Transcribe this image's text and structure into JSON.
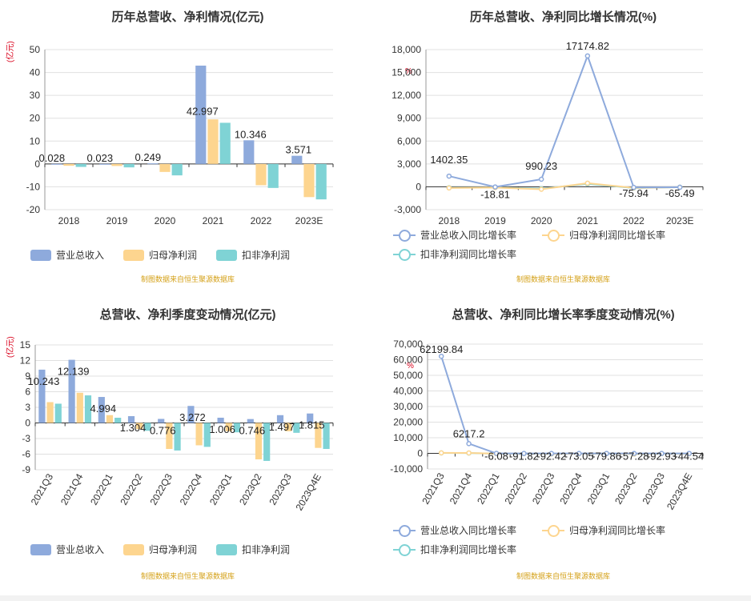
{
  "colors": {
    "revenue": "#8eaadc",
    "net_profit": "#fdd58f",
    "deducted_net_profit": "#7fd3d5",
    "axis_text": "#333333",
    "grid": "#e0e0e0",
    "unit_red": "#d9001b",
    "source": "#d4a017"
  },
  "source_text": "制图数据来自恒生聚源数据库",
  "chart_data": [
    {
      "id": "p1",
      "type": "bar",
      "title": "历年总营收、净利情况(亿元)",
      "unit": "(亿元)",
      "categories": [
        "2018",
        "2019",
        "2020",
        "2021",
        "2022",
        "2023E"
      ],
      "ylim": [
        -20,
        50
      ],
      "yticks": [
        -20,
        -10,
        0,
        10,
        20,
        30,
        40,
        50
      ],
      "series": [
        {
          "name": "营业总收入",
          "values": [
            0.028,
            0.023,
            0.249,
            42.997,
            10.346,
            3.571
          ]
        },
        {
          "name": "归母净利润",
          "values": [
            -0.8,
            -0.9,
            -3.5,
            19.5,
            -9.3,
            -14.5
          ]
        },
        {
          "name": "扣非净利润",
          "values": [
            -1.3,
            -1.5,
            -5.0,
            18.0,
            -10.5,
            -15.5
          ]
        }
      ],
      "data_labels": [
        "0.028",
        "0.023",
        "0.249",
        "42.997",
        "10.346",
        "3.571"
      ],
      "legend_position": "bottom-left",
      "grid": true
    },
    {
      "id": "p2",
      "type": "line",
      "title": "历年总营收、净利同比增长情况(%)",
      "unit": "%",
      "categories": [
        "2018",
        "2019",
        "2020",
        "2021",
        "2022",
        "2023E"
      ],
      "ylim": [
        -3000,
        18000
      ],
      "yticks": [
        -3000,
        0,
        3000,
        6000,
        9000,
        12000,
        15000,
        18000
      ],
      "ytick_labels": [
        "-3,000",
        "0",
        "3,000",
        "6,000",
        "9,000",
        "12,000",
        "15,000",
        "18,000"
      ],
      "series": [
        {
          "name": "营业总收入同比增长率",
          "values": [
            1402.35,
            -18.81,
            990.23,
            17174.82,
            -75.94,
            -65.49
          ]
        },
        {
          "name": "归母净利润同比增长率",
          "values": [
            -150,
            -100,
            -320,
            480,
            -140,
            -60
          ]
        },
        {
          "name": "扣非净利润同比增长率",
          "values": [
            -120,
            -90,
            -250,
            400,
            -160,
            -50
          ]
        }
      ],
      "data_labels": [
        "1402.35",
        "-18.81",
        "990.23",
        "17174.82",
        "-75.94",
        "-65.49"
      ],
      "legend_position": "bottom-left",
      "grid": true
    },
    {
      "id": "p3",
      "type": "bar",
      "title": "总营收、净利季度变动情况(亿元)",
      "unit": "(亿元)",
      "categories": [
        "2021Q3",
        "2021Q4",
        "2022Q1",
        "2022Q2",
        "2022Q3",
        "2022Q4",
        "2023Q1",
        "2023Q2",
        "2023Q3",
        "2023Q4E"
      ],
      "ylim": [
        -9,
        15
      ],
      "yticks": [
        -9,
        -6,
        -3,
        0,
        3,
        6,
        9,
        12,
        15
      ],
      "series": [
        {
          "name": "营业总收入",
          "values": [
            10.243,
            12.139,
            4.994,
            1.304,
            0.776,
            3.272,
            1.006,
            0.746,
            1.497,
            1.815
          ]
        },
        {
          "name": "归母净利润",
          "values": [
            4.0,
            5.8,
            1.5,
            -1.2,
            -5.0,
            -4.3,
            -1.6,
            -7.0,
            -1.6,
            -4.8
          ]
        },
        {
          "name": "扣非净利润",
          "values": [
            3.7,
            5.3,
            1.0,
            -1.5,
            -5.3,
            -4.6,
            -1.8,
            -7.3,
            -1.9,
            -5.0
          ]
        }
      ],
      "data_labels": [
        "10.243",
        "12.139",
        "4.994",
        "1.304",
        "0.776",
        "3.272",
        "1.006",
        "0.746",
        "1.497",
        "1.815"
      ],
      "legend_position": "bottom-left",
      "grid": true
    },
    {
      "id": "p4",
      "type": "line",
      "title": "总营收、净利同比增长率季度变动情况(%)",
      "unit": "%",
      "categories": [
        "2021Q3",
        "2021Q4",
        "2022Q1",
        "2022Q2",
        "2022Q3",
        "2022Q4",
        "2023Q1",
        "2023Q2",
        "2023Q3",
        "2023Q4E"
      ],
      "ylim": [
        -10000,
        70000
      ],
      "yticks": [
        -10000,
        0,
        10000,
        20000,
        30000,
        40000,
        50000,
        60000,
        70000
      ],
      "ytick_labels": [
        "-10,000",
        "0",
        "10,000",
        "20,000",
        "30,000",
        "40,000",
        "50,000",
        "60,000",
        "70,000"
      ],
      "series": [
        {
          "name": "营业总收入同比增长率",
          "values": [
            62199.84,
            6217.2,
            -6.08,
            -91.82,
            -92.42,
            -73.05,
            -79.86,
            -57.28,
            -92.93,
            -44.54
          ]
        },
        {
          "name": "归母净利润同比增长率",
          "values": [
            300,
            250,
            -200,
            -150,
            -300,
            -250,
            -100,
            -400,
            -150,
            -200
          ]
        },
        {
          "name": "扣非净利润同比增长率",
          "values": [
            280,
            220,
            -180,
            -170,
            -320,
            -260,
            -120,
            -420,
            -160,
            -210
          ]
        }
      ],
      "data_labels": [
        "62199.84",
        "6217.2",
        "-6.08",
        "-91.82",
        "-92.42",
        "-73.05",
        "-79.86",
        "-57.28",
        "-92.93",
        "-44.54"
      ],
      "legend_position": "bottom-left",
      "grid": true
    }
  ]
}
